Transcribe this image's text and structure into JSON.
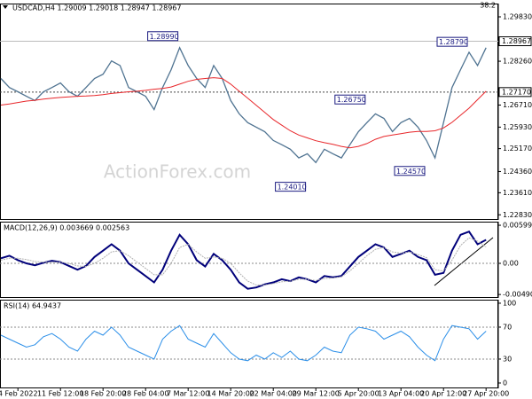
{
  "chart_data": [
    {
      "type": "line",
      "title": "USDCAD,H4  1.29009 1.29018 1.28947 1.28967",
      "corner_label": "38.2",
      "watermark": "ActionForex.com",
      "ylim": [
        1.2265,
        1.303
      ],
      "yticks": [
        {
          "value": 1.2983,
          "label": "1.29830"
        },
        {
          "value": 1.2826,
          "label": "1.28260"
        },
        {
          "value": 1.2671,
          "label": "1.26710"
        },
        {
          "value": 1.2593,
          "label": "1.25930"
        },
        {
          "value": 1.2517,
          "label": "1.25170"
        },
        {
          "value": 1.2436,
          "label": "1.24360"
        },
        {
          "value": 1.2361,
          "label": "1.23610"
        },
        {
          "value": 1.2283,
          "label": "1.22830"
        }
      ],
      "price_lines": [
        {
          "value": 1.28967,
          "label": "1.28967",
          "style": "solid"
        },
        {
          "value": 1.2717,
          "label": "1.27170",
          "style": "dotted"
        }
      ],
      "annotations": [
        {
          "label": "1.28990",
          "value": 1.2899,
          "index": 21
        },
        {
          "label": "1.24010",
          "value": 1.2401,
          "index": 36
        },
        {
          "label": "1.26750",
          "value": 1.2675,
          "index": 43
        },
        {
          "label": "1.24570",
          "value": 1.2457,
          "index": 50
        },
        {
          "label": "1.28790",
          "value": 1.2879,
          "index": 55
        }
      ],
      "series": [
        {
          "name": null,
          "color": "#4f7391",
          "width": 1.3,
          "values": [
            1.2765,
            1.2733,
            1.2718,
            1.2702,
            1.2687,
            1.2718,
            1.2733,
            1.2749,
            1.2718,
            1.2702,
            1.2733,
            1.2765,
            1.278,
            1.2827,
            1.2811,
            1.2733,
            1.2718,
            1.2702,
            1.2655,
            1.2733,
            1.2796,
            1.2874,
            1.2811,
            1.2765,
            1.2733,
            1.2811,
            1.2765,
            1.2687,
            1.264,
            1.2609,
            1.2593,
            1.2577,
            1.2546,
            1.2531,
            1.2515,
            1.2484,
            1.2499,
            1.2468,
            1.2515,
            1.2499,
            1.2484,
            1.2531,
            1.2577,
            1.2609,
            1.264,
            1.2624,
            1.2577,
            1.2609,
            1.2624,
            1.2593,
            1.2546,
            1.2484,
            1.2609,
            1.2733,
            1.2796,
            1.2858,
            1.2811,
            1.2874
          ]
        },
        {
          "name": null,
          "color": "#e8262a",
          "width": 1,
          "values": [
            1.2671,
            1.2675,
            1.268,
            1.2685,
            1.2688,
            1.2692,
            1.2695,
            1.2698,
            1.27,
            1.2702,
            1.2703,
            1.2705,
            1.2708,
            1.2712,
            1.2715,
            1.2718,
            1.272,
            1.2723,
            1.2727,
            1.273,
            1.2735,
            1.2745,
            1.2755,
            1.2762,
            1.2765,
            1.2768,
            1.2765,
            1.2745,
            1.272,
            1.2695,
            1.267,
            1.2645,
            1.262,
            1.26,
            1.258,
            1.2565,
            1.2555,
            1.2545,
            1.2538,
            1.2532,
            1.2525,
            1.252,
            1.2525,
            1.2535,
            1.255,
            1.256,
            1.2565,
            1.257,
            1.2575,
            1.2578,
            1.2578,
            1.258,
            1.259,
            1.261,
            1.2635,
            1.266,
            1.269,
            1.272
          ]
        }
      ]
    },
    {
      "type": "line",
      "title": "MACD(12,26,9) 0.003669 0.002563",
      "ylim": [
        -0.00544,
        0.00656
      ],
      "yticks": [
        0.005996,
        {
          "value": 0,
          "label": "0.00"
        },
        -0.004901
      ],
      "reference_lines": [
        0
      ],
      "series": [
        {
          "name": null,
          "color": "#00007a",
          "width": 2,
          "values": [
            0.0008,
            0.0012,
            0.0005,
            0.0,
            -0.0003,
            0.0001,
            0.0004,
            0.0002,
            -0.0004,
            -0.001,
            -0.0004,
            0.001,
            0.002,
            0.003,
            0.002,
            0.0,
            -0.001,
            -0.002,
            -0.003,
            -0.001,
            0.002,
            0.0045,
            0.003,
            0.0005,
            -0.0005,
            0.0015,
            0.0005,
            -0.001,
            -0.003,
            -0.004,
            -0.0038,
            -0.0033,
            -0.003,
            -0.0025,
            -0.0028,
            -0.0022,
            -0.0025,
            -0.003,
            -0.002,
            -0.0022,
            -0.002,
            -0.0005,
            0.001,
            0.002,
            0.003,
            0.0025,
            0.001,
            0.0015,
            0.002,
            0.001,
            0.0005,
            -0.0018,
            -0.0015,
            0.002,
            0.0045,
            0.005,
            0.003,
            0.0037
          ]
        },
        {
          "name": null,
          "color": "#b0b0b0",
          "width": 1,
          "values": [
            0.0005,
            0.0008,
            0.0008,
            0.0006,
            0.0003,
            0.0002,
            0.0002,
            0.0002,
            0.0,
            -0.0004,
            -0.0005,
            0.0,
            0.0008,
            0.0018,
            0.002,
            0.0012,
            0.0002,
            -0.0008,
            -0.0018,
            -0.0018,
            0.0,
            0.0025,
            0.003,
            0.0018,
            0.0008,
            0.001,
            0.0008,
            0.0,
            -0.0015,
            -0.0028,
            -0.0034,
            -0.0034,
            -0.0032,
            -0.0029,
            -0.0028,
            -0.0025,
            -0.0025,
            -0.0027,
            -0.0024,
            -0.0023,
            -0.0021,
            -0.0012,
            0.0,
            0.0012,
            0.0022,
            0.0025,
            0.0018,
            0.0016,
            0.0018,
            0.0014,
            0.0009,
            -0.001,
            -0.0012,
            0.0005,
            0.0028,
            0.004,
            0.0035,
            0.0026
          ]
        }
      ]
    },
    {
      "type": "line",
      "title": "RSI(14) 64.9437",
      "ylim": [
        -6.7,
        104.4
      ],
      "yticks": [
        100,
        70,
        30,
        0
      ],
      "reference_lines": [
        70,
        30
      ],
      "categories": [
        null,
        null,
        "4 Feb 2022",
        null,
        null,
        null,
        null,
        "11 Feb 12:00",
        null,
        null,
        null,
        null,
        "18 Feb 20:00",
        null,
        null,
        null,
        null,
        "28 Feb 04:00",
        null,
        null,
        null,
        null,
        "7 Mar 12:00",
        null,
        null,
        null,
        null,
        "14 Mar 20:00",
        null,
        null,
        null,
        null,
        "22 Mar 04:00",
        null,
        null,
        null,
        null,
        "29 Mar 12:00",
        null,
        null,
        null,
        null,
        "5 Apr 20:00",
        null,
        null,
        null,
        null,
        "13 Apr 04:00",
        null,
        null,
        null,
        null,
        "20 Apr 12:00",
        null,
        null,
        null,
        null,
        "27 Apr 20:00"
      ],
      "series": [
        {
          "name": null,
          "color": "#2a8ee8",
          "width": 1,
          "values": [
            60,
            55,
            50,
            45,
            48,
            58,
            62,
            55,
            45,
            40,
            55,
            65,
            60,
            70,
            60,
            45,
            40,
            35,
            30,
            55,
            65,
            72,
            55,
            50,
            45,
            62,
            50,
            38,
            30,
            28,
            35,
            30,
            38,
            32,
            40,
            30,
            28,
            35,
            45,
            40,
            38,
            60,
            70,
            68,
            65,
            55,
            60,
            65,
            58,
            45,
            35,
            28,
            55,
            72,
            70,
            68,
            55,
            65
          ]
        }
      ]
    }
  ]
}
